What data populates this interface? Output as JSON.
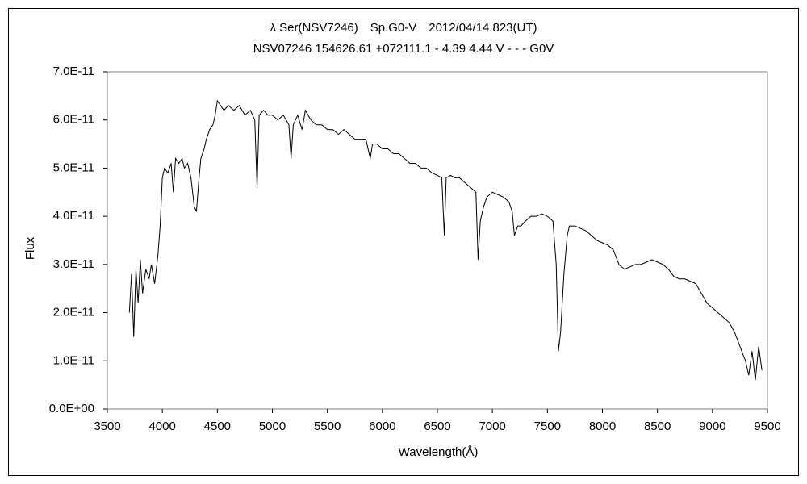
{
  "chart_data": {
    "type": "line",
    "title": "λ Ser(NSV7246)　Sp.G0-V　2012/04/14.823(UT)",
    "subtitle": "NSV07246 154626.61 +072111.1 - 4.39 4.44 V - - - G0V",
    "x_label": "Wavelength(Å)",
    "y_label": "Flux",
    "x": [
      3700,
      3720,
      3740,
      3760,
      3780,
      3800,
      3820,
      3850,
      3880,
      3900,
      3930,
      3960,
      3980,
      4000,
      4020,
      4050,
      4080,
      4100,
      4120,
      4150,
      4180,
      4200,
      4230,
      4260,
      4290,
      4310,
      4330,
      4350,
      4380,
      4400,
      4430,
      4460,
      4480,
      4500,
      4530,
      4560,
      4600,
      4650,
      4700,
      4750,
      4800,
      4840,
      4861,
      4880,
      4920,
      4960,
      5000,
      5050,
      5100,
      5150,
      5170,
      5190,
      5230,
      5270,
      5300,
      5350,
      5400,
      5450,
      5500,
      5550,
      5600,
      5650,
      5700,
      5750,
      5800,
      5850,
      5890,
      5910,
      5950,
      6000,
      6050,
      6100,
      6150,
      6200,
      6250,
      6300,
      6350,
      6400,
      6450,
      6500,
      6540,
      6563,
      6580,
      6620,
      6660,
      6700,
      6750,
      6800,
      6850,
      6870,
      6890,
      6920,
      6950,
      7000,
      7050,
      7100,
      7150,
      7180,
      7200,
      7230,
      7260,
      7300,
      7350,
      7400,
      7450,
      7500,
      7550,
      7580,
      7600,
      7620,
      7650,
      7680,
      7700,
      7750,
      7800,
      7850,
      7900,
      7950,
      8000,
      8050,
      8100,
      8150,
      8200,
      8250,
      8300,
      8350,
      8400,
      8450,
      8500,
      8550,
      8600,
      8650,
      8700,
      8750,
      8800,
      8850,
      8900,
      8950,
      9000,
      9050,
      9100,
      9150,
      9200,
      9250,
      9300,
      9330,
      9360,
      9390,
      9420,
      9450
    ],
    "series": [
      {
        "color": "#000000",
        "values": [
          2e-11,
          2.8e-11,
          1.5e-11,
          2.9e-11,
          2.2e-11,
          3.1e-11,
          2.4e-11,
          2.9e-11,
          2.7e-11,
          3e-11,
          2.6e-11,
          3.2e-11,
          3.8e-11,
          4.8e-11,
          5e-11,
          4.9e-11,
          5.1e-11,
          4.5e-11,
          5.2e-11,
          5.1e-11,
          5.2e-11,
          5e-11,
          5.1e-11,
          4.8e-11,
          4.2e-11,
          4.1e-11,
          4.7e-11,
          5.2e-11,
          5.4e-11,
          5.6e-11,
          5.8e-11,
          5.9e-11,
          6.1e-11,
          6.4e-11,
          6.3e-11,
          6.2e-11,
          6.3e-11,
          6.2e-11,
          6.3e-11,
          6.1e-11,
          6.2e-11,
          6e-11,
          4.6e-11,
          6.1e-11,
          6.2e-11,
          6.1e-11,
          6.1e-11,
          6e-11,
          6.1e-11,
          5.9e-11,
          5.2e-11,
          5.9e-11,
          6.1e-11,
          5.8e-11,
          6.2e-11,
          6e-11,
          5.9e-11,
          5.9e-11,
          5.8e-11,
          5.8e-11,
          5.7e-11,
          5.8e-11,
          5.7e-11,
          5.6e-11,
          5.6e-11,
          5.6e-11,
          5.2e-11,
          5.5e-11,
          5.5e-11,
          5.4e-11,
          5.4e-11,
          5.3e-11,
          5.3e-11,
          5.2e-11,
          5.1e-11,
          5.1e-11,
          5e-11,
          5e-11,
          4.9e-11,
          4.85e-11,
          4.8e-11,
          3.6e-11,
          4.8e-11,
          4.85e-11,
          4.8e-11,
          4.8e-11,
          4.7e-11,
          4.6e-11,
          4.5e-11,
          3.1e-11,
          3.9e-11,
          4.2e-11,
          4.4e-11,
          4.5e-11,
          4.45e-11,
          4.4e-11,
          4.3e-11,
          4.1e-11,
          3.6e-11,
          3.8e-11,
          3.8e-11,
          3.9e-11,
          4e-11,
          4e-11,
          4.05e-11,
          4e-11,
          3.9e-11,
          3e-11,
          1.2e-11,
          1.6e-11,
          2.8e-11,
          3.6e-11,
          3.8e-11,
          3.8e-11,
          3.75e-11,
          3.7e-11,
          3.6e-11,
          3.5e-11,
          3.45e-11,
          3.4e-11,
          3.3e-11,
          3e-11,
          2.9e-11,
          2.95e-11,
          3e-11,
          3e-11,
          3.05e-11,
          3.1e-11,
          3.05e-11,
          3e-11,
          2.9e-11,
          2.75e-11,
          2.7e-11,
          2.7e-11,
          2.65e-11,
          2.6e-11,
          2.4e-11,
          2.2e-11,
          2.1e-11,
          2e-11,
          1.9e-11,
          1.8e-11,
          1.6e-11,
          1.3e-11,
          1e-11,
          7e-12,
          1.2e-11,
          6e-12,
          1.3e-11,
          8e-12
        ]
      }
    ],
    "xlim": [
      3500,
      9500
    ],
    "xticks": [
      3500,
      4000,
      4500,
      5000,
      5500,
      6000,
      6500,
      7000,
      7500,
      8000,
      8500,
      9000,
      9500
    ],
    "ylim": [
      0,
      7e-11
    ],
    "yticks": [
      {
        "value": 0,
        "label": "0.0E+00"
      },
      {
        "value": 1e-11,
        "label": "1.0E-11"
      },
      {
        "value": 2e-11,
        "label": "2.0E-11"
      },
      {
        "value": 3e-11,
        "label": "3.0E-11"
      },
      {
        "value": 4e-11,
        "label": "4.0E-11"
      },
      {
        "value": 5e-11,
        "label": "5.0E-11"
      },
      {
        "value": 6e-11,
        "label": "6.0E-11"
      },
      {
        "value": 7e-11,
        "label": "7.0E-11"
      }
    ],
    "grid": false
  }
}
